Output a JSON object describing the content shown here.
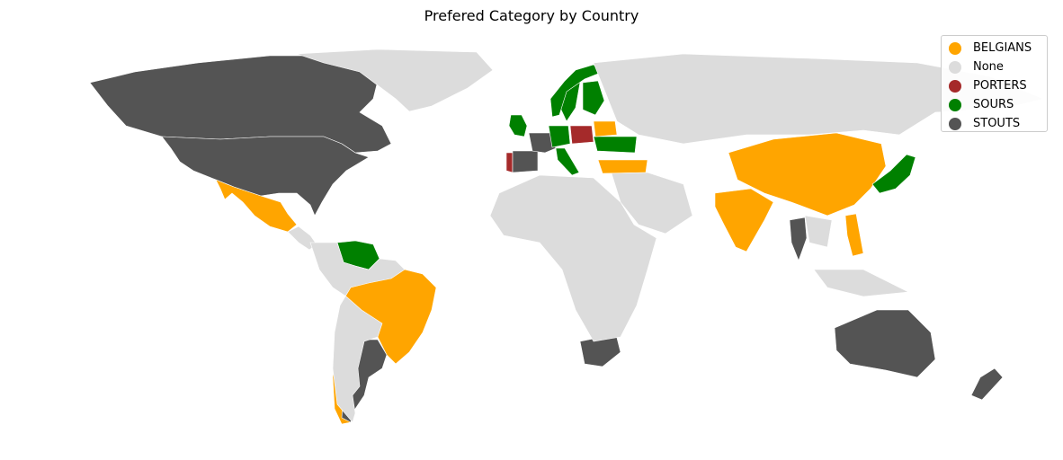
{
  "title": "Prefered Category by Country",
  "colors": {
    "BELGIANS": "#ffa500",
    "None": "#dcdcdc",
    "PORTERS": "#a52a2a",
    "SOURS": "#008000",
    "STOUTS": "#545454",
    "background": "#ffffff",
    "border": "#ffffff"
  },
  "legend": {
    "items": [
      {
        "label": "BELGIANS",
        "category": "BELGIANS"
      },
      {
        "label": "None",
        "category": "None"
      },
      {
        "label": "PORTERS",
        "category": "PORTERS"
      },
      {
        "label": "SOURS",
        "category": "SOURS"
      },
      {
        "label": "STOUTS",
        "category": "STOUTS"
      }
    ],
    "placement": "top-right"
  },
  "regions": [
    {
      "name": "Canada",
      "category": "STOUTS"
    },
    {
      "name": "United States",
      "category": "STOUTS"
    },
    {
      "name": "Mexico",
      "category": "BELGIANS"
    },
    {
      "name": "Venezuela",
      "category": "SOURS"
    },
    {
      "name": "Brazil",
      "category": "BELGIANS"
    },
    {
      "name": "Chile",
      "category": "BELGIANS"
    },
    {
      "name": "Argentina",
      "category": "STOUTS"
    },
    {
      "name": "United Kingdom",
      "category": "SOURS"
    },
    {
      "name": "Portugal",
      "category": "PORTERS"
    },
    {
      "name": "Spain",
      "category": "STOUTS"
    },
    {
      "name": "France",
      "category": "STOUTS"
    },
    {
      "name": "Germany",
      "category": "SOURS"
    },
    {
      "name": "Poland",
      "category": "PORTERS"
    },
    {
      "name": "Sweden",
      "category": "SOURS"
    },
    {
      "name": "Norway",
      "category": "SOURS"
    },
    {
      "name": "Finland",
      "category": "SOURS"
    },
    {
      "name": "Ukraine",
      "category": "SOURS"
    },
    {
      "name": "Belarus",
      "category": "BELGIANS"
    },
    {
      "name": "Italy",
      "category": "SOURS"
    },
    {
      "name": "Turkey",
      "category": "BELGIANS"
    },
    {
      "name": "Russia",
      "category": "None"
    },
    {
      "name": "China",
      "category": "BELGIANS"
    },
    {
      "name": "India",
      "category": "BELGIANS"
    },
    {
      "name": "Japan",
      "category": "SOURS"
    },
    {
      "name": "Thailand",
      "category": "STOUTS"
    },
    {
      "name": "Philippines",
      "category": "BELGIANS"
    },
    {
      "name": "South Africa",
      "category": "STOUTS"
    },
    {
      "name": "Australia",
      "category": "STOUTS"
    },
    {
      "name": "New Zealand",
      "category": "STOUTS"
    },
    {
      "name": "Africa (other)",
      "category": "None"
    },
    {
      "name": "Middle East (other)",
      "category": "None"
    },
    {
      "name": "Southeast Asia (other)",
      "category": "None"
    },
    {
      "name": "Greenland",
      "category": "None"
    },
    {
      "name": "Central America (other)",
      "category": "None"
    },
    {
      "name": "South America (other)",
      "category": "None"
    }
  ]
}
